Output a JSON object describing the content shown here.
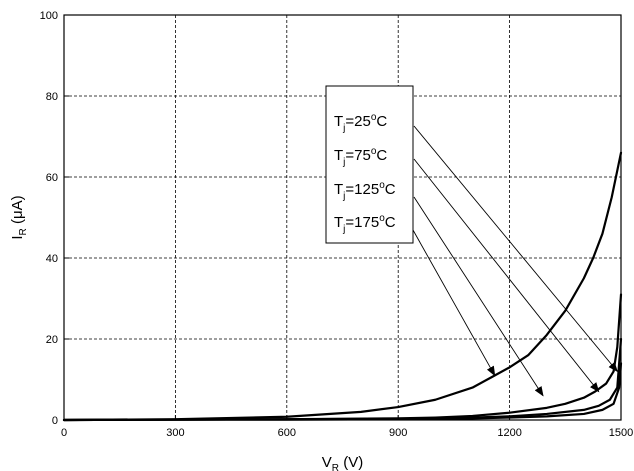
{
  "chart_data": {
    "type": "line",
    "title": "",
    "xlabel": "V",
    "xlabel_sub": "R",
    "xlabel_unit": " (V)",
    "ylabel": "I",
    "ylabel_sub": "R",
    "ylabel_unit": " (μA)",
    "xlim": [
      0,
      1500
    ],
    "ylim": [
      0,
      100
    ],
    "xticks": [
      0,
      300,
      600,
      900,
      1200,
      1500
    ],
    "yticks": [
      0,
      20,
      40,
      60,
      80,
      100
    ],
    "grid": true,
    "legend_position": "top-center",
    "series": [
      {
        "name": "Tj=25°C",
        "label_parts": {
          "main": "T",
          "sub": "j",
          "eq": "=25",
          "sup": "o",
          "unit": "C"
        },
        "x": [
          0,
          300,
          600,
          800,
          900,
          1000,
          1100,
          1150,
          1200,
          1250,
          1300,
          1350,
          1400,
          1425,
          1450,
          1475,
          1500
        ],
        "y": [
          0,
          0.2,
          0.8,
          2,
          3.2,
          5,
          8,
          10.5,
          13,
          16,
          21,
          27,
          35,
          40,
          46,
          55,
          66
        ]
      },
      {
        "name": "Tj=75°C",
        "label_parts": {
          "main": "T",
          "sub": "j",
          "eq": "=75",
          "sup": "o",
          "unit": "C"
        },
        "x": [
          0,
          300,
          600,
          900,
          1000,
          1100,
          1200,
          1300,
          1350,
          1400,
          1430,
          1460,
          1480,
          1490,
          1500
        ],
        "y": [
          0,
          0.1,
          0.2,
          0.4,
          0.6,
          1,
          1.8,
          3,
          4,
          5.5,
          7,
          9,
          12,
          18,
          31
        ]
      },
      {
        "name": "Tj=125°C",
        "label_parts": {
          "main": "T",
          "sub": "j",
          "eq": "=125",
          "sup": "o",
          "unit": "C"
        },
        "x": [
          0,
          300,
          600,
          900,
          1000,
          1100,
          1200,
          1300,
          1400,
          1440,
          1470,
          1490,
          1500
        ],
        "y": [
          0,
          0.1,
          0.2,
          0.3,
          0.4,
          0.6,
          0.9,
          1.5,
          2.5,
          3.5,
          5,
          8,
          20
        ]
      },
      {
        "name": "Tj=175°C",
        "label_parts": {
          "main": "T",
          "sub": "j",
          "eq": "=175",
          "sup": "o",
          "unit": "C"
        },
        "x": [
          0,
          300,
          600,
          900,
          1000,
          1100,
          1200,
          1300,
          1400,
          1450,
          1480,
          1495,
          1500
        ],
        "y": [
          0,
          0.1,
          0.1,
          0.2,
          0.3,
          0.4,
          0.6,
          0.9,
          1.5,
          2.5,
          4,
          8,
          14
        ]
      }
    ],
    "annotations": [
      {
        "label": "Tj=25°C",
        "to_series": 0,
        "arrow_to": [
          1490,
          12
        ]
      },
      {
        "label": "Tj=75°C",
        "to_series": 1,
        "arrow_to": [
          1440,
          7
        ]
      },
      {
        "label": "Tj=125°C",
        "to_series": 2,
        "arrow_to": [
          1290,
          6
        ]
      },
      {
        "label": "Tj=175°C",
        "to_series": 3,
        "arrow_to": [
          1160,
          11
        ]
      }
    ]
  }
}
